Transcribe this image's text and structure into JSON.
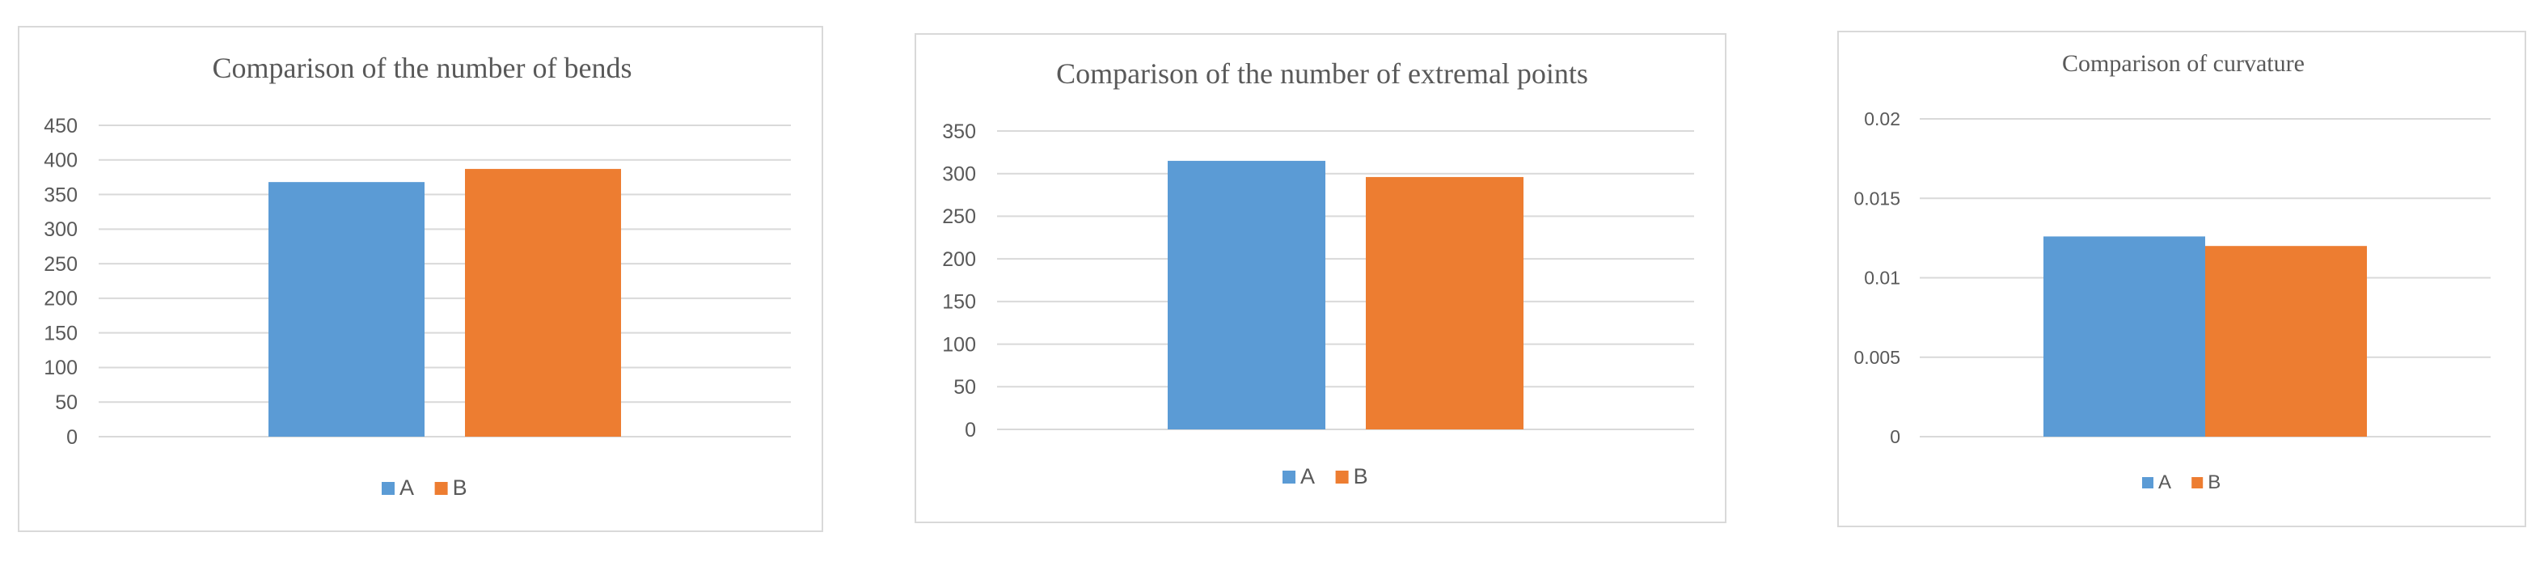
{
  "chart_data": [
    {
      "type": "bar",
      "title": "Comparison of the number of bends",
      "xlabel": "",
      "ylabel": "",
      "categories": [
        ""
      ],
      "series": [
        {
          "name": "A",
          "values": [
            368
          ],
          "color": "#5b9bd5"
        },
        {
          "name": "B",
          "values": [
            387
          ],
          "color": "#ed7d31"
        }
      ],
      "ylim": [
        0,
        450
      ],
      "yticks": [
        "0",
        "50",
        "100",
        "150",
        "200",
        "250",
        "300",
        "350",
        "400",
        "450"
      ],
      "grid": true,
      "legend": "bottom"
    },
    {
      "type": "bar",
      "title": "Comparison of the number of extremal points",
      "xlabel": "",
      "ylabel": "",
      "categories": [
        ""
      ],
      "series": [
        {
          "name": "A",
          "values": [
            315
          ],
          "color": "#5b9bd5"
        },
        {
          "name": "B",
          "values": [
            296
          ],
          "color": "#ed7d31"
        }
      ],
      "ylim": [
        0,
        350
      ],
      "yticks": [
        "0",
        "50",
        "100",
        "150",
        "200",
        "250",
        "300",
        "350"
      ],
      "grid": true,
      "legend": "bottom"
    },
    {
      "type": "bar",
      "title": "Comparison of curvature",
      "xlabel": "",
      "ylabel": "",
      "categories": [
        ""
      ],
      "series": [
        {
          "name": "A",
          "values": [
            0.0126
          ],
          "color": "#5b9bd5"
        },
        {
          "name": "B",
          "values": [
            0.012
          ],
          "color": "#ed7d31"
        }
      ],
      "ylim": [
        0,
        0.02
      ],
      "yticks": [
        "0",
        "0.005",
        "0.01",
        "0.015",
        "0.02"
      ],
      "grid": true,
      "legend": "bottom"
    }
  ]
}
